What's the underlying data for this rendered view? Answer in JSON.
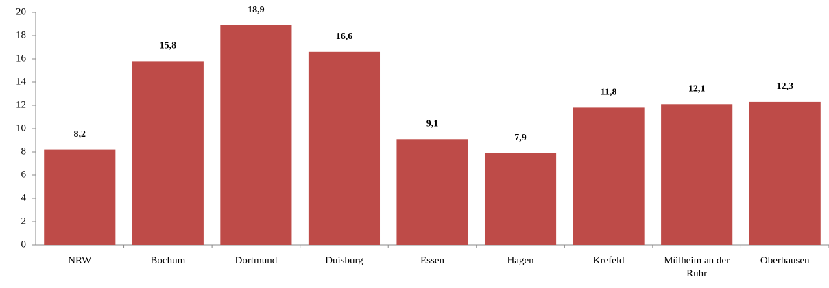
{
  "chart_data": {
    "type": "bar",
    "categories": [
      "NRW",
      "Bochum",
      "Dortmund",
      "Duisburg",
      "Essen",
      "Hagen",
      "Krefeld",
      "Mülheim an der Ruhr",
      "Oberhausen"
    ],
    "values": [
      8.2,
      15.8,
      18.9,
      16.6,
      9.1,
      7.9,
      11.8,
      12.1,
      12.3
    ],
    "value_labels": [
      "8,2",
      "15,8",
      "18,9",
      "16,6",
      "9,1",
      "7,9",
      "11,8",
      "12,1",
      "12,3"
    ],
    "color": "#be4b48",
    "ylim": [
      0,
      20
    ],
    "yticks": [
      0,
      2,
      4,
      6,
      8,
      10,
      12,
      14,
      16,
      18,
      20
    ],
    "grid": false
  }
}
